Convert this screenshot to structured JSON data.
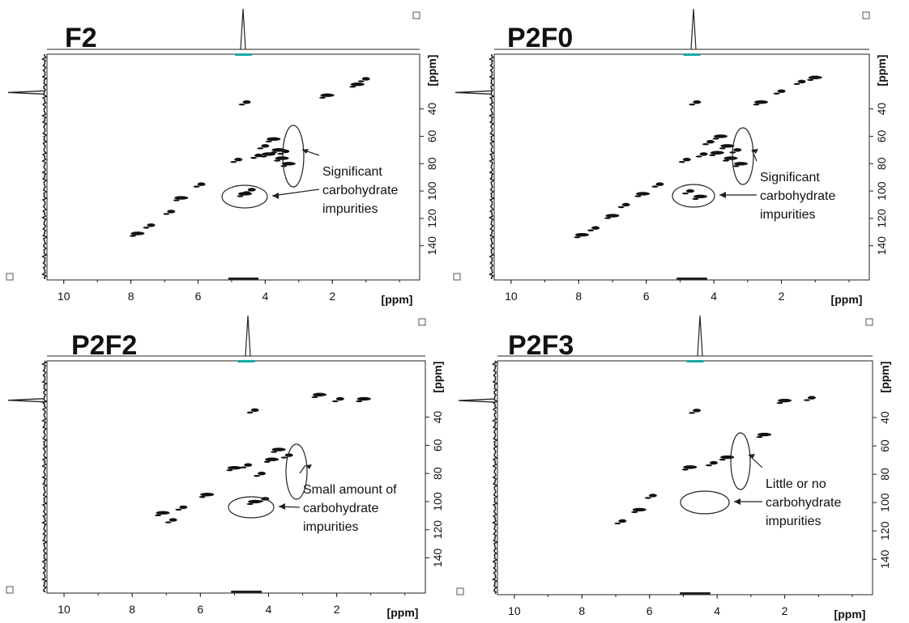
{
  "figure": {
    "x_unit_label": "[ppm]",
    "y_unit_label": "[ppm]"
  },
  "chart_data": [
    {
      "type": "heatmap",
      "title": "F2",
      "xlabel": "[ppm]",
      "ylabel": "[ppm]",
      "xlim": [
        10.5,
        -0.6
      ],
      "ylim": [
        0,
        165
      ],
      "x_ticks": [
        "10",
        "8",
        "6",
        "4",
        "2"
      ],
      "y_ticks": [
        "40",
        "60",
        "80",
        "100",
        "120",
        "140"
      ],
      "annotation": "Significant carbohydrate impurities",
      "annotation_lines": [
        "Significant",
        "carbohydrate",
        "impurities"
      ],
      "peaks": [
        {
          "x": 4.55,
          "y": 35
        },
        {
          "x": 3.75,
          "y": 62
        },
        {
          "x": 4.0,
          "y": 67
        },
        {
          "x": 3.6,
          "y": 70
        },
        {
          "x": 3.4,
          "y": 71
        },
        {
          "x": 3.9,
          "y": 73
        },
        {
          "x": 4.2,
          "y": 74
        },
        {
          "x": 3.5,
          "y": 76
        },
        {
          "x": 4.8,
          "y": 77
        },
        {
          "x": 3.3,
          "y": 80
        },
        {
          "x": 5.9,
          "y": 95
        },
        {
          "x": 6.5,
          "y": 105
        },
        {
          "x": 6.8,
          "y": 115
        },
        {
          "x": 1.25,
          "y": 22
        },
        {
          "x": 1.0,
          "y": 18
        },
        {
          "x": 2.15,
          "y": 30
        },
        {
          "x": 4.4,
          "y": 99
        },
        {
          "x": 4.6,
          "y": 102
        },
        {
          "x": 7.4,
          "y": 125
        },
        {
          "x": 7.8,
          "y": 131
        }
      ]
    },
    {
      "type": "heatmap",
      "title": "P2F0",
      "xlabel": "[ppm]",
      "ylabel": "[ppm]",
      "xlim": [
        10.5,
        -0.6
      ],
      "ylim": [
        0,
        165
      ],
      "x_ticks": [
        "10",
        "8",
        "6",
        "4",
        "2"
      ],
      "y_ticks": [
        "40",
        "60",
        "80",
        "100",
        "120",
        "140"
      ],
      "annotation": "Significant carbohydrate impurities",
      "annotation_lines": [
        "Significant",
        "carbohydrate",
        "impurities"
      ],
      "peaks": [
        {
          "x": 4.5,
          "y": 35
        },
        {
          "x": 3.8,
          "y": 60
        },
        {
          "x": 4.1,
          "y": 64
        },
        {
          "x": 3.6,
          "y": 67
        },
        {
          "x": 3.3,
          "y": 70
        },
        {
          "x": 3.9,
          "y": 72
        },
        {
          "x": 4.3,
          "y": 73
        },
        {
          "x": 3.5,
          "y": 76
        },
        {
          "x": 4.8,
          "y": 77
        },
        {
          "x": 3.2,
          "y": 80
        },
        {
          "x": 5.6,
          "y": 95
        },
        {
          "x": 6.1,
          "y": 102
        },
        {
          "x": 6.6,
          "y": 110
        },
        {
          "x": 7.0,
          "y": 118
        },
        {
          "x": 7.5,
          "y": 127
        },
        {
          "x": 7.9,
          "y": 132
        },
        {
          "x": 1.4,
          "y": 20
        },
        {
          "x": 1.0,
          "y": 17
        },
        {
          "x": 2.0,
          "y": 27
        },
        {
          "x": 2.6,
          "y": 35
        },
        {
          "x": 4.7,
          "y": 100
        },
        {
          "x": 4.4,
          "y": 104
        }
      ]
    },
    {
      "type": "heatmap",
      "title": "P2F2",
      "xlabel": "[ppm]",
      "ylabel": "[ppm]",
      "xlim": [
        10.5,
        -0.6
      ],
      "ylim": [
        0,
        165
      ],
      "x_ticks": [
        "10",
        "8",
        "6",
        "4",
        "2"
      ],
      "y_ticks": [
        "40",
        "60",
        "80",
        "100",
        "120",
        "140"
      ],
      "annotation": "Small amount of carbohydrate impurities",
      "annotation_lines": [
        "Small amount of",
        "carbohydrate",
        "impurities"
      ],
      "peaks": [
        {
          "x": 4.4,
          "y": 35
        },
        {
          "x": 3.7,
          "y": 63
        },
        {
          "x": 3.4,
          "y": 67
        },
        {
          "x": 3.9,
          "y": 70
        },
        {
          "x": 4.6,
          "y": 74
        },
        {
          "x": 5.0,
          "y": 76
        },
        {
          "x": 4.2,
          "y": 80
        },
        {
          "x": 5.8,
          "y": 95
        },
        {
          "x": 6.5,
          "y": 104
        },
        {
          "x": 7.1,
          "y": 108
        },
        {
          "x": 6.8,
          "y": 113
        },
        {
          "x": 2.5,
          "y": 24
        },
        {
          "x": 1.9,
          "y": 27
        },
        {
          "x": 1.2,
          "y": 27
        },
        {
          "x": 4.1,
          "y": 98
        },
        {
          "x": 4.4,
          "y": 100
        }
      ]
    },
    {
      "type": "heatmap",
      "title": "P2F3",
      "xlabel": "[ppm]",
      "ylabel": "[ppm]",
      "xlim": [
        10.5,
        -0.6
      ],
      "ylim": [
        0,
        165
      ],
      "x_ticks": [
        "10",
        "8",
        "6",
        "4",
        "2"
      ],
      "y_ticks": [
        "40",
        "60",
        "80",
        "100",
        "120",
        "140"
      ],
      "annotation": "Little or no carbohydrate impurities",
      "annotation_lines": [
        "Little or no",
        "carbohydrate",
        "impurities"
      ],
      "peaks": [
        {
          "x": 4.6,
          "y": 35
        },
        {
          "x": 3.7,
          "y": 68
        },
        {
          "x": 4.1,
          "y": 72
        },
        {
          "x": 4.8,
          "y": 75
        },
        {
          "x": 5.9,
          "y": 95
        },
        {
          "x": 6.3,
          "y": 105
        },
        {
          "x": 6.8,
          "y": 113
        },
        {
          "x": 2.0,
          "y": 28
        },
        {
          "x": 1.2,
          "y": 26
        },
        {
          "x": 2.6,
          "y": 52
        }
      ]
    }
  ],
  "colors": {
    "contour": "#111111",
    "negative_contour": "#1aa6a6",
    "axis": "#222222"
  }
}
